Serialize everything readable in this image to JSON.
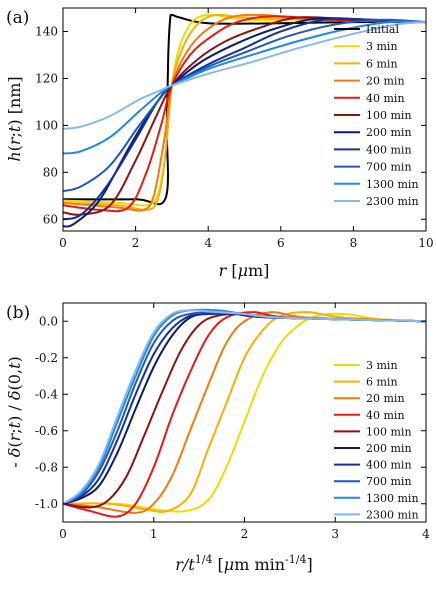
{
  "chart_data": [
    {
      "type": "line",
      "panel_label": "(a)",
      "xlabel": "r [μm]",
      "ylabel": "h(r,t) [nm]",
      "xlim": [
        0,
        10
      ],
      "ylim": [
        55,
        150
      ],
      "xticks": [
        "0",
        "2",
        "4",
        "6",
        "8",
        "10"
      ],
      "xtick_values": [
        0,
        2,
        4,
        6,
        8,
        10
      ],
      "yticks": [
        "60",
        "80",
        "100",
        "120",
        "140"
      ],
      "ytick_values": [
        60,
        80,
        100,
        120,
        140
      ],
      "legend_position": "right",
      "series": [
        {
          "name": "Initial",
          "color": "#000000",
          "x": [
            0,
            2.0,
            2.82,
            2.86,
            2.9,
            2.95,
            3.0,
            3.2,
            4.0,
            6,
            8,
            10
          ],
          "y": [
            68.5,
            68.5,
            68.8,
            100,
            130,
            145,
            147,
            146,
            143.5,
            143.5,
            144,
            144
          ]
        },
        {
          "name": "3 min",
          "color": "#f5d800",
          "x": [
            0,
            1.5,
            2.3,
            2.6,
            2.8,
            3.0,
            3.2,
            3.5,
            3.8,
            4.2,
            5,
            7,
            10
          ],
          "y": [
            68,
            67,
            66,
            70,
            85,
            117,
            133,
            143,
            146.5,
            147,
            145,
            145,
            144
          ]
        },
        {
          "name": "6 min",
          "color": "#f9b000",
          "x": [
            0,
            1.5,
            2.3,
            2.6,
            2.8,
            3.0,
            3.3,
            3.7,
            4.2,
            5,
            7,
            10
          ],
          "y": [
            67,
            66,
            64,
            68,
            85,
            117,
            133,
            143,
            147,
            146,
            145,
            144
          ]
        },
        {
          "name": "20 min",
          "color": "#f47a10",
          "x": [
            0,
            1.5,
            2.2,
            2.5,
            2.8,
            3.0,
            3.4,
            3.9,
            4.6,
            5.5,
            7,
            10
          ],
          "y": [
            67,
            65,
            64,
            70,
            95,
            117,
            131,
            140,
            146,
            147,
            145,
            144
          ]
        },
        {
          "name": "40 min",
          "color": "#e61a12",
          "x": [
            0,
            1.0,
            1.8,
            2.3,
            2.7,
            3.0,
            3.5,
            4.1,
            4.8,
            5.8,
            7.5,
            10
          ],
          "y": [
            66,
            64,
            65,
            80,
            100,
            117,
            130,
            138,
            144,
            146.5,
            145,
            144
          ]
        },
        {
          "name": "100 min",
          "color": "#8c1410",
          "x": [
            0,
            0.5,
            1.3,
            2.0,
            2.6,
            3.0,
            3.7,
            4.5,
            5.5,
            6.5,
            8,
            10
          ],
          "y": [
            63,
            62,
            66,
            85,
            105,
            117,
            128,
            136,
            142,
            146,
            145,
            144
          ]
        },
        {
          "name": "200 min",
          "color": "#0a1a78",
          "x": [
            0,
            0.3,
            1.0,
            1.8,
            2.5,
            3.0,
            3.8,
            4.8,
            5.8,
            7.0,
            8.5,
            10
          ],
          "y": [
            57,
            58,
            68,
            90,
            108,
            117,
            127,
            135,
            141,
            145.5,
            145,
            144
          ]
        },
        {
          "name": "400 min",
          "color": "#1230a0",
          "x": [
            0,
            0.5,
            1.2,
            2.0,
            2.6,
            3.0,
            4.0,
            5.0,
            6.0,
            7.2,
            8.5,
            10
          ],
          "y": [
            60,
            62,
            74,
            94,
            110,
            117,
            126,
            133,
            140,
            145,
            145,
            144
          ]
        },
        {
          "name": "700 min",
          "color": "#2255c8",
          "x": [
            0,
            0.5,
            1.3,
            2.1,
            2.7,
            3.0,
            4.0,
            5.0,
            6.2,
            7.5,
            8.8,
            10
          ],
          "y": [
            72,
            74,
            83,
            100,
            112,
            117,
            125,
            131,
            138,
            143,
            145,
            144
          ]
        },
        {
          "name": "1300 min",
          "color": "#1e8ae6",
          "x": [
            0,
            0.5,
            1.3,
            2.1,
            2.7,
            3.0,
            4.0,
            5.2,
            6.5,
            7.8,
            9,
            10
          ],
          "y": [
            88,
            89,
            95,
            106,
            114,
            117,
            124,
            130,
            136,
            141,
            144,
            144
          ]
        },
        {
          "name": "2300 min",
          "color": "#88b8ee",
          "x": [
            0,
            0.5,
            1.3,
            2.1,
            2.7,
            3.0,
            4.0,
            5.2,
            6.5,
            8.0,
            9.2,
            10
          ],
          "y": [
            98.5,
            99.5,
            104,
            111,
            115,
            117,
            122,
            127,
            133,
            139,
            143,
            144
          ]
        }
      ]
    },
    {
      "type": "line",
      "panel_label": "(b)",
      "xlabel": "r/t^{1/4} [μm min^{-1/4}]",
      "ylabel": "- δ(r;t) / δ(0,t)",
      "xlim": [
        0,
        4
      ],
      "ylim": [
        -1.1,
        0.1
      ],
      "xticks": [
        "0",
        "1",
        "2",
        "3",
        "4"
      ],
      "xtick_values": [
        0,
        1,
        2,
        3,
        4
      ],
      "yticks": [
        "0.0",
        "-0.2",
        "-0.4",
        "-0.6",
        "-0.8",
        "-1.0"
      ],
      "ytick_values": [
        0.0,
        -0.2,
        -0.4,
        -0.6,
        -0.8,
        -1.0
      ],
      "legend_position": "right",
      "series": [
        {
          "name": "3 min",
          "color": "#f5d800",
          "x": [
            0,
            0.6,
            1.0,
            1.35,
            1.6,
            1.8,
            2.0,
            2.2,
            2.4,
            2.6,
            2.8,
            3.1,
            3.5,
            4
          ],
          "y": [
            -1.0,
            -1.0,
            -1.03,
            -1.04,
            -0.98,
            -0.8,
            -0.55,
            -0.3,
            -0.12,
            -0.02,
            0.03,
            0.04,
            0.01,
            0.0
          ]
        },
        {
          "name": "6 min",
          "color": "#f9b000",
          "x": [
            0,
            0.5,
            0.9,
            1.15,
            1.4,
            1.6,
            1.8,
            2.0,
            2.2,
            2.4,
            2.7,
            3.1,
            4
          ],
          "y": [
            -1.0,
            -1.0,
            -1.03,
            -1.04,
            -0.95,
            -0.7,
            -0.45,
            -0.2,
            -0.05,
            0.03,
            0.05,
            0.02,
            0.0
          ]
        },
        {
          "name": "20 min",
          "color": "#f47a10",
          "x": [
            0,
            0.4,
            0.8,
            1.0,
            1.2,
            1.4,
            1.6,
            1.8,
            2.0,
            2.3,
            2.7,
            4
          ],
          "y": [
            -1.0,
            -1.02,
            -1.05,
            -1.0,
            -0.85,
            -0.6,
            -0.35,
            -0.12,
            0.0,
            0.05,
            0.02,
            0.0
          ]
        },
        {
          "name": "40 min",
          "color": "#e61a12",
          "x": [
            0,
            0.3,
            0.6,
            0.8,
            1.0,
            1.2,
            1.4,
            1.6,
            1.8,
            2.1,
            2.5,
            4
          ],
          "y": [
            -1.0,
            -1.04,
            -1.07,
            -1.0,
            -0.8,
            -0.52,
            -0.28,
            -0.08,
            0.02,
            0.05,
            0.02,
            0.0
          ]
        },
        {
          "name": "100 min",
          "color": "#8c1410",
          "x": [
            0,
            0.3,
            0.5,
            0.7,
            0.9,
            1.1,
            1.3,
            1.5,
            1.7,
            2.0,
            2.4,
            4
          ],
          "y": [
            -1.0,
            -1.02,
            -0.98,
            -0.85,
            -0.62,
            -0.38,
            -0.16,
            -0.02,
            0.03,
            0.04,
            0.02,
            0.0
          ]
        },
        {
          "name": "200 min",
          "color": "#0a1a78",
          "x": [
            0,
            0.2,
            0.4,
            0.6,
            0.8,
            1.0,
            1.2,
            1.4,
            1.6,
            1.9,
            2.3,
            4
          ],
          "y": [
            -1.0,
            -0.97,
            -0.9,
            -0.72,
            -0.48,
            -0.25,
            -0.08,
            0.02,
            0.04,
            0.04,
            0.02,
            0.0
          ]
        },
        {
          "name": "400 min",
          "color": "#1230a0",
          "x": [
            0,
            0.2,
            0.4,
            0.6,
            0.8,
            1.0,
            1.2,
            1.4,
            1.6,
            1.9,
            2.3,
            4
          ],
          "y": [
            -1.0,
            -0.96,
            -0.86,
            -0.65,
            -0.4,
            -0.18,
            -0.04,
            0.03,
            0.04,
            0.04,
            0.02,
            0.0
          ]
        },
        {
          "name": "700 min",
          "color": "#2255c8",
          "x": [
            0,
            0.2,
            0.4,
            0.6,
            0.8,
            1.0,
            1.2,
            1.4,
            1.7,
            2.0,
            2.4,
            4
          ],
          "y": [
            -1.0,
            -0.95,
            -0.82,
            -0.6,
            -0.34,
            -0.12,
            0.0,
            0.04,
            0.05,
            0.04,
            0.02,
            0.0
          ]
        },
        {
          "name": "1300 min",
          "color": "#1e8ae6",
          "x": [
            0,
            0.2,
            0.4,
            0.6,
            0.8,
            1.0,
            1.2,
            1.4,
            1.7,
            2.0,
            2.4,
            4
          ],
          "y": [
            -1.0,
            -0.94,
            -0.8,
            -0.55,
            -0.3,
            -0.08,
            0.03,
            0.06,
            0.06,
            0.04,
            0.02,
            0.0
          ]
        },
        {
          "name": "2300 min",
          "color": "#88b8ee",
          "x": [
            0,
            0.2,
            0.4,
            0.6,
            0.8,
            1.0,
            1.2,
            1.4,
            1.7,
            2.0,
            2.4,
            4
          ],
          "y": [
            -1.0,
            -0.93,
            -0.78,
            -0.52,
            -0.27,
            -0.06,
            0.04,
            0.06,
            0.05,
            0.04,
            0.02,
            0.0
          ]
        }
      ]
    }
  ]
}
